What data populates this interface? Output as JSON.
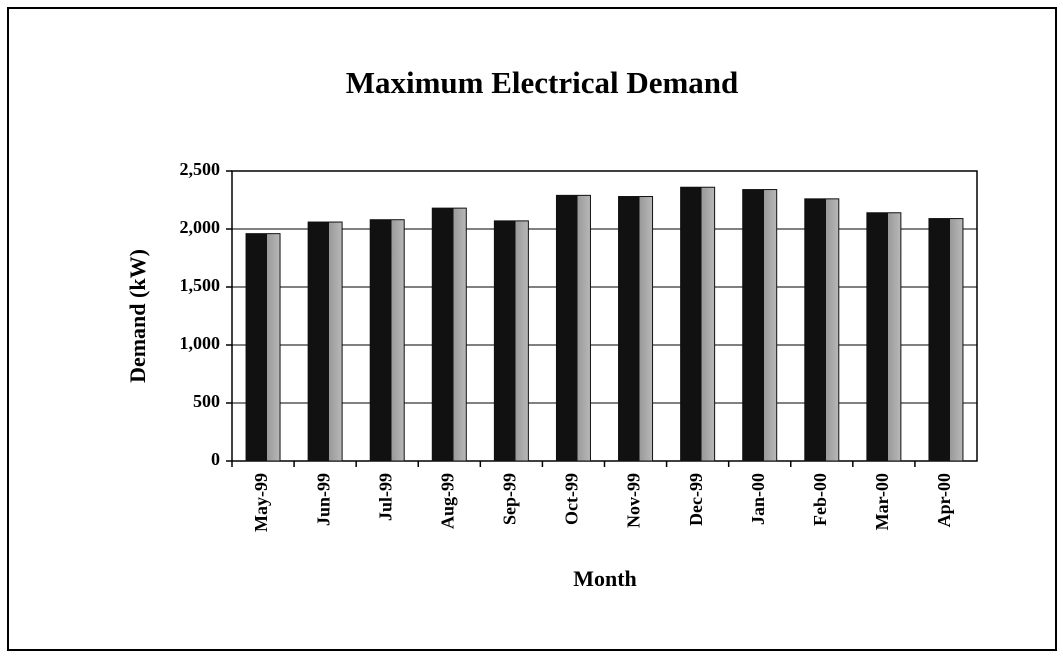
{
  "chart_data": {
    "type": "bar",
    "title": "Maximum Electrical Demand",
    "x_label": "Month",
    "y_label": "Demand (kW)",
    "categories": [
      "May-99",
      "Jun-99",
      "Jul-99",
      "Aug-99",
      "Sep-99",
      "Oct-99",
      "Nov-99",
      "Dec-99",
      "Jan-00",
      "Feb-00",
      "Mar-00",
      "Apr-00"
    ],
    "values": [
      1960,
      2060,
      2080,
      2180,
      2070,
      2290,
      2280,
      2360,
      2340,
      2260,
      2140,
      2090
    ],
    "color": "#111111",
    "ylim": [
      0,
      2500
    ],
    "yticks": [
      0,
      500,
      {
        "value": 1000,
        "label": "1,000"
      },
      {
        "value": 1500,
        "label": "1,500"
      },
      {
        "value": 2000,
        "label": "2,000"
      },
      {
        "value": 2500,
        "label": "2,500"
      }
    ],
    "grid": true
  }
}
